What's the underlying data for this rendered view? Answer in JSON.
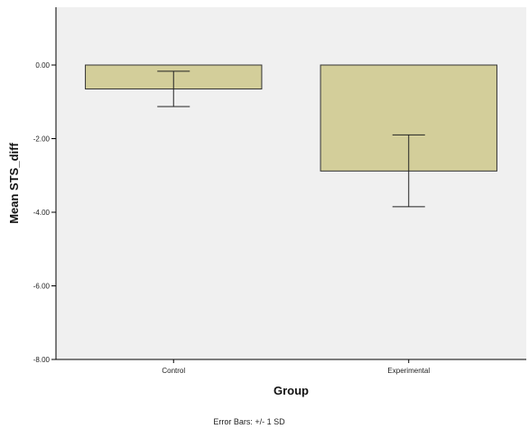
{
  "chart_data": {
    "type": "bar",
    "categories": [
      "Control",
      "Experimental"
    ],
    "values": [
      -0.65,
      -2.88
    ],
    "error_bars": [
      {
        "lower": -1.13,
        "upper": -0.17
      },
      {
        "lower": -3.85,
        "upper": -1.9
      }
    ],
    "xlabel": "Group",
    "ylabel": "Mean STS_diff",
    "ylim": [
      -8,
      1.5
    ],
    "yticks": [
      0,
      -2,
      -4,
      -6,
      -8
    ],
    "ytick_labels": [
      "0.00",
      "-2.00",
      "-4.00",
      "-6.00",
      "-8.00"
    ],
    "footnote": "Error Bars: +/- 1 SD",
    "grid": false,
    "colors": {
      "plot_background": "#f0f0f0",
      "bar_fill": "#d3ce9a",
      "bar_stroke": "#333333"
    }
  }
}
